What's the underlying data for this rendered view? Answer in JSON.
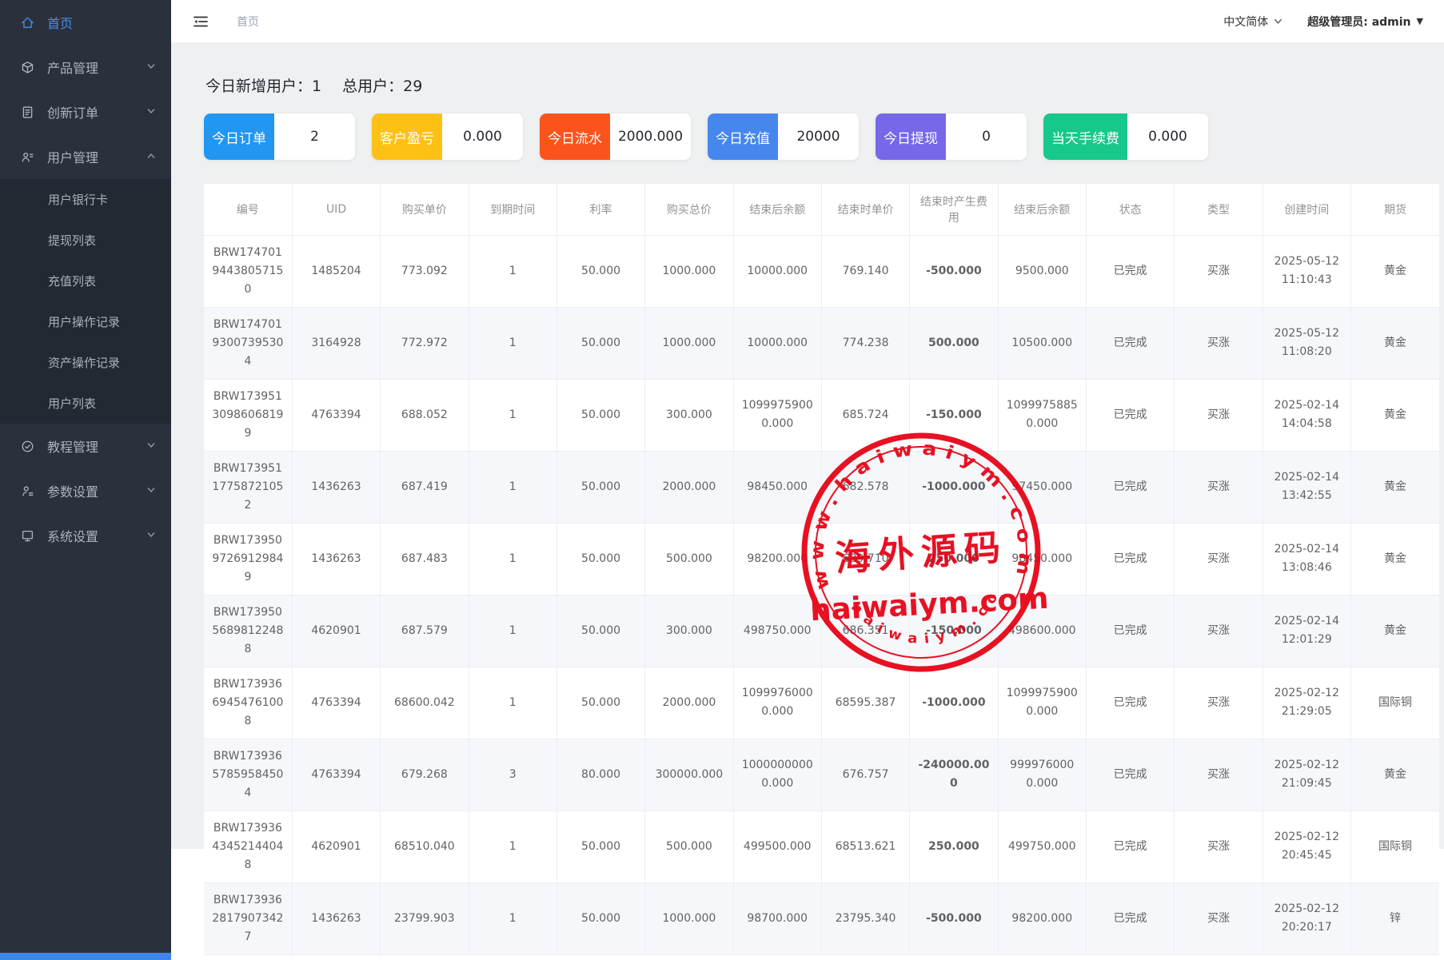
{
  "topbar": {
    "breadcrumb": "首页",
    "language": "中文简体",
    "admin_label": "超级管理员: admin",
    "admin_caret": "▼"
  },
  "sidebar": {
    "items": [
      {
        "id": "home",
        "label": "首页",
        "icon": "home-icon",
        "active": true
      },
      {
        "id": "product",
        "label": "产品管理",
        "icon": "product-icon",
        "chevron": "down"
      },
      {
        "id": "orders",
        "label": "创新订单",
        "icon": "order-icon",
        "chevron": "down"
      },
      {
        "id": "users",
        "label": "用户管理",
        "icon": "users-icon",
        "chevron": "up",
        "children": [
          "用户银行卡",
          "提现列表",
          "充值列表",
          "用户操作记录",
          "资产操作记录",
          "用户列表"
        ]
      },
      {
        "id": "tutorial",
        "label": "教程管理",
        "icon": "tutorial-icon",
        "chevron": "down"
      },
      {
        "id": "params",
        "label": "参数设置",
        "icon": "params-icon",
        "chevron": "down"
      },
      {
        "id": "system",
        "label": "系统设置",
        "icon": "system-icon",
        "chevron": "down"
      }
    ]
  },
  "summary": {
    "new_users_label": "今日新增用户：",
    "new_users_value": "1",
    "total_users_label": "总用户：",
    "total_users_value": "29"
  },
  "stat_cards": [
    {
      "label": "今日订单",
      "value": "2",
      "color": "#2196f3"
    },
    {
      "label": "客户盈亏",
      "value": "0.000",
      "color": "#fdc116"
    },
    {
      "label": "今日流水",
      "value": "2000.000",
      "color": "#fa541c"
    },
    {
      "label": "今日充值",
      "value": "20000",
      "color": "#4687ee"
    },
    {
      "label": "今日提现",
      "value": "0",
      "color": "#7668e8"
    },
    {
      "label": "当天手续费",
      "value": "0.000",
      "color": "#16c88a"
    }
  ],
  "table": {
    "columns": [
      "编号",
      "UID",
      "购买单价",
      "到期时间",
      "利率",
      "购买总价",
      "结束后余额",
      "结束时单价",
      "结束时产生费用",
      "结束后余额",
      "状态",
      "类型",
      "创建时间",
      "期货"
    ],
    "fee_column_index": 8,
    "rows": [
      {
        "cells": [
          "BRW17470194438057150",
          "1485204",
          "773.092",
          "1",
          "50.000",
          "1000.000",
          "10000.000",
          "769.140",
          "-500.000",
          "9500.000",
          "已完成",
          "买涨",
          "2025-05-12 11:10:43",
          "黄金"
        ],
        "fee_color": "green"
      },
      {
        "cells": [
          "BRW17470193007395304",
          "3164928",
          "772.972",
          "1",
          "50.000",
          "1000.000",
          "10000.000",
          "774.238",
          "500.000",
          "10500.000",
          "已完成",
          "买涨",
          "2025-05-12 11:08:20",
          "黄金"
        ],
        "fee_color": "red"
      },
      {
        "cells": [
          "BRW17395130986068199",
          "4763394",
          "688.052",
          "1",
          "50.000",
          "300.000",
          "10999759000.000",
          "685.724",
          "-150.000",
          "10999758850.000",
          "已完成",
          "买涨",
          "2025-02-14 14:04:58",
          "黄金"
        ],
        "fee_color": "green"
      },
      {
        "cells": [
          "BRW17395117758721052",
          "1436263",
          "687.419",
          "1",
          "50.000",
          "2000.000",
          "98450.000",
          "682.578",
          "-1000.000",
          "97450.000",
          "已完成",
          "买涨",
          "2025-02-14 13:42:55",
          "黄金"
        ],
        "fee_color": "green"
      },
      {
        "cells": [
          "BRW17395097269129849",
          "1436263",
          "687.483",
          "1",
          "50.000",
          "500.000",
          "98200.000",
          "689.710",
          "250.000",
          "98450.000",
          "已完成",
          "买涨",
          "2025-02-14 13:08:46",
          "黄金"
        ],
        "fee_color": "red"
      },
      {
        "cells": [
          "BRW17395056898122488",
          "4620901",
          "687.579",
          "1",
          "50.000",
          "300.000",
          "498750.000",
          "686.351",
          "-150.000",
          "498600.000",
          "已完成",
          "买涨",
          "2025-02-14 12:01:29",
          "黄金"
        ],
        "fee_color": "green"
      },
      {
        "cells": [
          "BRW17393669454761008",
          "4763394",
          "68600.042",
          "1",
          "50.000",
          "2000.000",
          "10999760000.000",
          "68595.387",
          "-1000.000",
          "10999759000.000",
          "已完成",
          "买涨",
          "2025-02-12 21:29:05",
          "国际铜"
        ],
        "fee_color": "green"
      },
      {
        "cells": [
          "BRW17393657859584504",
          "4763394",
          "679.268",
          "3",
          "80.000",
          "300000.000",
          "10000000000.000",
          "676.757",
          "-240000.000",
          "9999760000.000",
          "已完成",
          "买涨",
          "2025-02-12 21:09:45",
          "黄金"
        ],
        "fee_color": "green"
      },
      {
        "cells": [
          "BRW17393643452144048",
          "4620901",
          "68510.040",
          "1",
          "50.000",
          "500.000",
          "499500.000",
          "68513.621",
          "250.000",
          "499750.000",
          "已完成",
          "买涨",
          "2025-02-12 20:45:45",
          "国际铜"
        ],
        "fee_color": "red"
      },
      {
        "cells": [
          "BRW17393628179073427",
          "1436263",
          "23799.903",
          "1",
          "50.000",
          "1000.000",
          "98700.000",
          "23795.340",
          "-500.000",
          "98200.000",
          "已完成",
          "买涨",
          "2025-02-12 20:20:17",
          "锌"
        ],
        "fee_color": "green"
      }
    ]
  },
  "watermark": {
    "top_text": "www.haiwaiym.com",
    "center_text": "海外源码",
    "main_text": "haiwaiym.com",
    "bottom_text": "haiwaiym.com",
    "color": "#e60012"
  }
}
